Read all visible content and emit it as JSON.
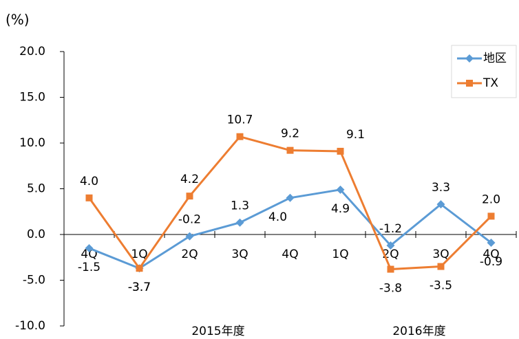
{
  "chart_data": {
    "type": "line",
    "y_axis_label": "(%)",
    "categories": [
      "4Q",
      "1Q",
      "2Q",
      "3Q",
      "4Q",
      "1Q",
      "2Q",
      "3Q",
      "4Q"
    ],
    "groups": [
      {
        "label": "2015年度",
        "span": [
          1,
          4
        ]
      },
      {
        "label": "2016年度",
        "span": [
          5,
          8
        ]
      }
    ],
    "series": [
      {
        "name": "地区",
        "color": "#5b9bd5",
        "marker": "diamond",
        "values": [
          -1.5,
          -3.7,
          -0.2,
          1.3,
          4.0,
          4.9,
          -1.2,
          3.3,
          -0.9
        ],
        "value_labels": [
          "-1.5",
          "-3.7",
          "-0.2",
          "1.3",
          "4.0",
          "4.9",
          "-1.2",
          "3.3",
          "-0.9"
        ]
      },
      {
        "name": "TX",
        "color": "#ed7d31",
        "marker": "square",
        "values": [
          4.0,
          -3.7,
          4.2,
          10.7,
          9.2,
          9.1,
          -3.8,
          -3.5,
          2.0
        ],
        "value_labels": [
          "4.0",
          "-3.7",
          "4.2",
          "10.7",
          "9.2",
          "9.1",
          "-3.8",
          "-3.5",
          "2.0"
        ]
      }
    ],
    "ylim": [
      -10,
      20
    ],
    "yticks": [
      {
        "value": -10,
        "label": "-10.0"
      },
      {
        "value": -5,
        "label": "-5.0"
      },
      {
        "value": 0,
        "label": "0.0"
      },
      {
        "value": 5,
        "label": "5.0"
      },
      {
        "value": 10,
        "label": "10.0"
      },
      {
        "value": 15,
        "label": "15.0"
      },
      {
        "value": 20,
        "label": "20.0"
      }
    ],
    "legend": "upper right"
  }
}
